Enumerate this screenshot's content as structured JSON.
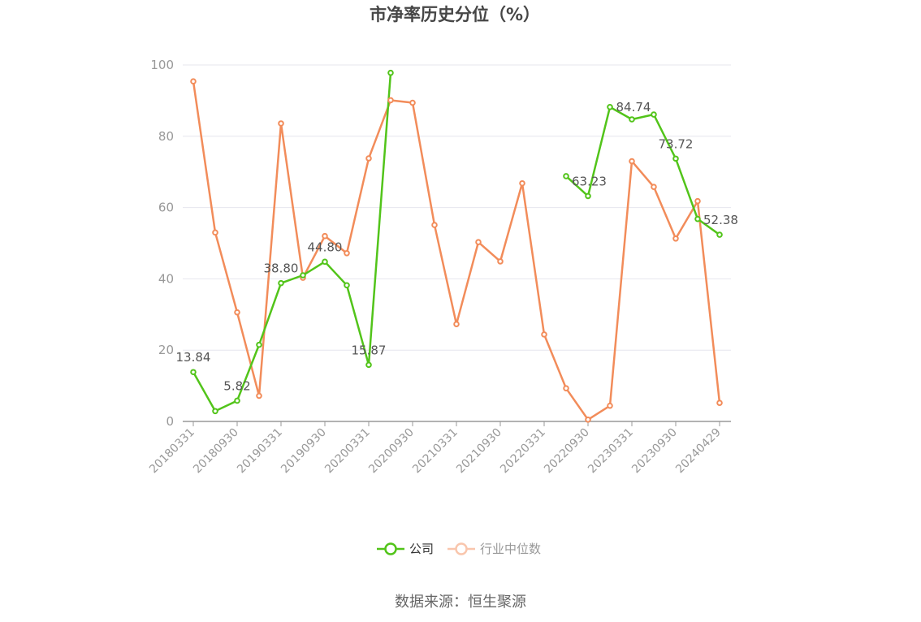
{
  "chart_data": {
    "type": "line",
    "title": "市净率历史分位（%）",
    "xlabel": "",
    "ylabel": "",
    "ylim": [
      0,
      100
    ],
    "yticks": [
      "0",
      "20",
      "40",
      "60",
      "80",
      "100"
    ],
    "xtick_labels": [
      "20180331",
      "20180930",
      "20190331",
      "20190930",
      "20200331",
      "20200930",
      "20210331",
      "20210930",
      "20220331",
      "20220930",
      "20230331",
      "20230930",
      "20240429"
    ],
    "x": [
      "20180331",
      "20180630",
      "20180930",
      "20181231",
      "20190331",
      "20190630",
      "20190930",
      "20191231",
      "20200331",
      "20200630",
      "20200930",
      "20201231",
      "20210331",
      "20210630",
      "20210930",
      "20211231",
      "20220331",
      "20220630",
      "20220930",
      "20221231",
      "20230331",
      "20230630",
      "20230930",
      "20231231",
      "20240429"
    ],
    "series": [
      {
        "name": "公司",
        "color": "#52c41a",
        "values": [
          13.84,
          2.9,
          5.82,
          21.5,
          38.8,
          41.0,
          44.8,
          38.2,
          15.87,
          97.8,
          null,
          null,
          null,
          null,
          null,
          null,
          null,
          68.8,
          63.23,
          88.2,
          84.74,
          86.1,
          73.72,
          56.8,
          52.38
        ],
        "labels": [
          "13.84",
          "",
          "5.82",
          "",
          "38.80",
          "",
          "44.80",
          "",
          "15.87",
          "",
          "",
          "",
          "",
          "",
          "",
          "",
          "",
          "",
          "63.23",
          "",
          "84.74",
          "",
          "73.72",
          "",
          "52.38"
        ]
      },
      {
        "name": "行业中位数",
        "color": "#f28c5a",
        "values": [
          95.4,
          53.0,
          30.6,
          7.2,
          83.6,
          40.3,
          52.0,
          47.2,
          73.8,
          90.1,
          89.4,
          55.1,
          27.3,
          50.3,
          44.9,
          66.8,
          24.4,
          9.3,
          0.5,
          4.4,
          73.0,
          65.8,
          51.3,
          61.8,
          5.2
        ]
      }
    ],
    "legend_position": "bottom",
    "grid": true
  },
  "legend": {
    "company_label": "公司",
    "industry_label": "行业中位数"
  },
  "source_text": "数据来源：恒生聚源"
}
